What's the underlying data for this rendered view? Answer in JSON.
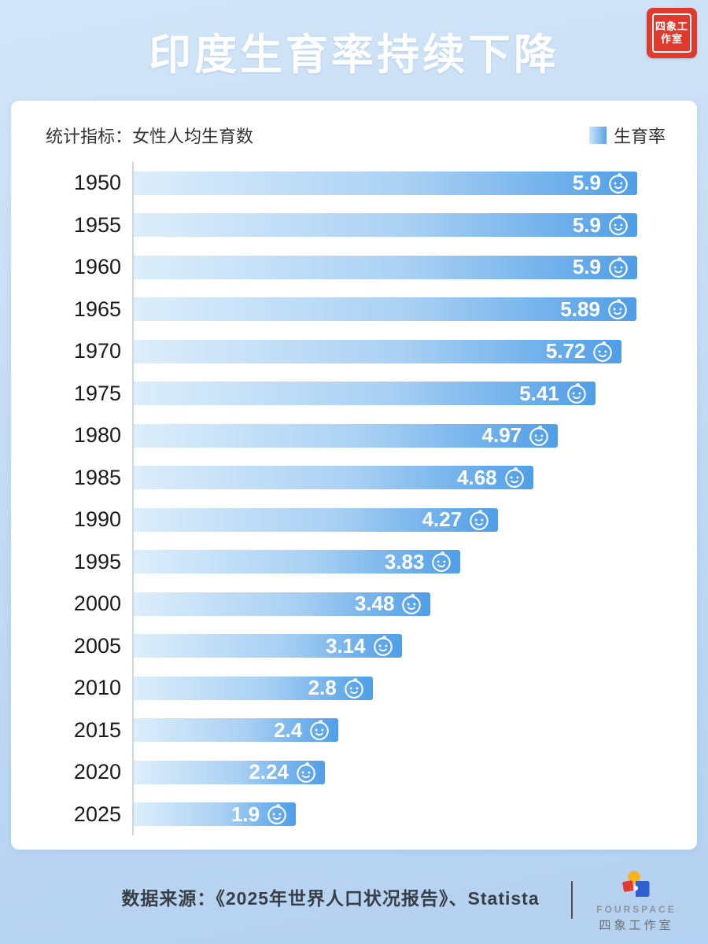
{
  "header": {
    "title": "印度生育率持续下降",
    "seal_text": "四象工作室"
  },
  "panel": {
    "indicator": "统计指标：女性人均生育数",
    "legend_label": "生育率"
  },
  "footer": {
    "source": "数据来源：《2025年世界人口状况报告》、Statista",
    "brand_en": "FOURSPACE",
    "brand_cn": "四象工作室"
  },
  "colors": {
    "background": "#c4dbf4",
    "title_text": "#ffffff",
    "bar_gradient_start": "#ddeefb",
    "bar_gradient_end": "#4f9ee7",
    "seal_red": "#e03a2f",
    "puzzle_yellow": "#f6b51e",
    "puzzle_red": "#e23b2e",
    "puzzle_blue": "#2f5fd0",
    "axis_line": "#ccd6df"
  },
  "chart_data": {
    "type": "bar",
    "orientation": "horizontal",
    "title": "印度生育率持续下降",
    "xlabel": "",
    "ylabel": "",
    "xlim": [
      0,
      5.9
    ],
    "grid": false,
    "legend": [
      "生育率"
    ],
    "legend_position": "top-right",
    "categories": [
      "1950",
      "1955",
      "1960",
      "1965",
      "1970",
      "1975",
      "1980",
      "1985",
      "1990",
      "1995",
      "2000",
      "2005",
      "2010",
      "2015",
      "2020",
      "2025"
    ],
    "values": [
      5.9,
      5.9,
      5.9,
      5.89,
      5.72,
      5.41,
      4.97,
      4.68,
      4.27,
      3.83,
      3.48,
      3.14,
      2.8,
      2.4,
      2.24,
      1.9
    ],
    "value_labels": [
      "5.9",
      "5.9",
      "5.9",
      "5.89",
      "5.72",
      "5.41",
      "4.97",
      "4.68",
      "4.27",
      "3.83",
      "3.48",
      "3.14",
      "2.8",
      "2.4",
      "2.24",
      "1.9"
    ]
  }
}
